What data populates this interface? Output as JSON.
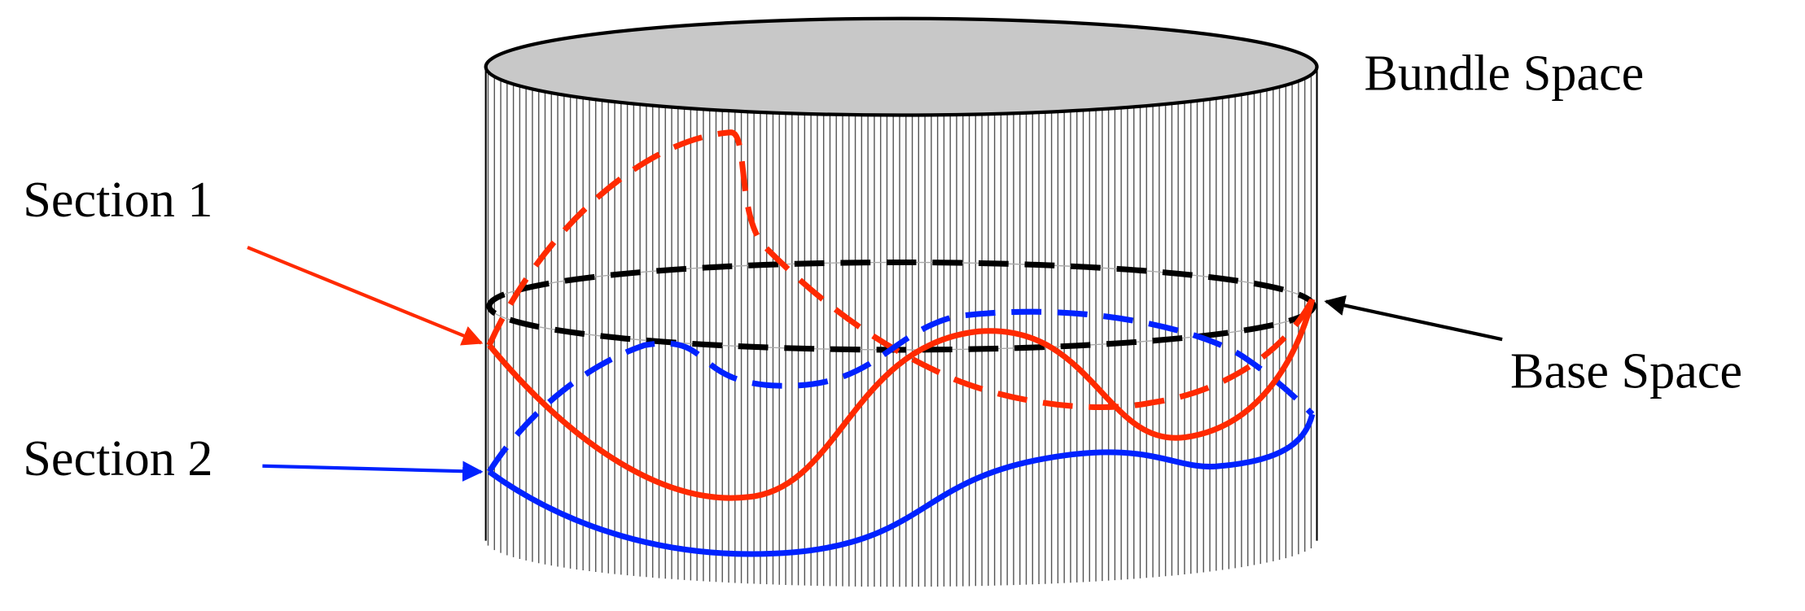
{
  "labels": {
    "bundle_space": "Bundle Space",
    "section_1": "Section 1",
    "section_2": "Section 2",
    "base_space": "Base Space"
  }
}
